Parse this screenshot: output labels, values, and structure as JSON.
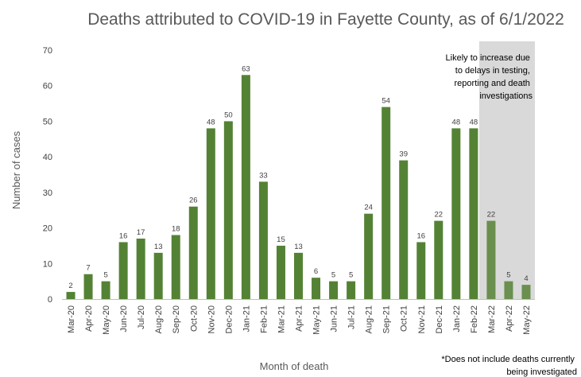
{
  "chart_data": {
    "type": "bar",
    "title": "Deaths attributed to COVID-19 in Fayette County, as of 6/1/2022",
    "xlabel": "Month of death",
    "ylabel": "Number of cases",
    "ylim": [
      0,
      70
    ],
    "yticks": [
      "0",
      "10",
      "20",
      "30",
      "40",
      "50",
      "60",
      "70"
    ],
    "grid": false,
    "categories": [
      "Mar-20",
      "Apr-20",
      "May-20",
      "Jun-20",
      "Jul-20",
      "Aug-20",
      "Sep-20",
      "Oct-20",
      "Nov-20",
      "Dec-20",
      "Jan-21",
      "Feb-21",
      "Mar-21",
      "Apr-21",
      "May-21",
      "Jun-21",
      "Jul-21",
      "Aug-21",
      "Sep-21",
      "Oct-21",
      "Nov-21",
      "Dec-21",
      "Jan-22",
      "Feb-22",
      "Mar-22",
      "Apr-22",
      "May-22"
    ],
    "values": [
      2,
      7,
      5,
      16,
      17,
      13,
      18,
      26,
      48,
      50,
      63,
      33,
      15,
      13,
      6,
      5,
      5,
      24,
      54,
      39,
      16,
      22,
      48,
      48,
      22,
      5,
      4
    ],
    "provisional_start_index": 24,
    "colors": {
      "bar": "#548235",
      "bar_provisional": "#6a8f4e",
      "shade": "#d9d9d9"
    },
    "annotation": [
      "Likely to increase due",
      "to delays in testing,",
      "reporting and death",
      "investigations"
    ],
    "footnote": [
      "*Does not include deaths currently",
      "being investigated"
    ]
  }
}
